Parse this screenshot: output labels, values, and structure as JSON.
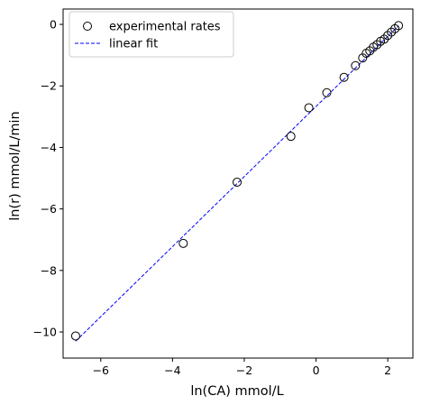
{
  "chart_data": {
    "type": "scatter",
    "xlabel": "ln(CA) mmol/L",
    "ylabel": "ln(r) mmol/L/min",
    "xlim": [
      -7.05,
      2.7
    ],
    "ylim": [
      -10.85,
      0.5
    ],
    "xticks": [
      -6,
      -4,
      -2,
      0,
      2
    ],
    "yticks": [
      0,
      -2,
      -4,
      -6,
      -8,
      -10
    ],
    "xtick_labels": [
      "−6",
      "−4",
      "−2",
      "0",
      "2"
    ],
    "ytick_labels": [
      "0",
      "−2",
      "−4",
      "−6",
      "−8",
      "−10"
    ],
    "grid": false,
    "legend_position": "upper-left",
    "series": [
      {
        "name": "experimental rates",
        "kind": "scatter",
        "marker": "open-circle",
        "color": "#000000",
        "x": [
          -6.7,
          -3.7,
          -2.2,
          -0.7,
          -0.2,
          0.3,
          0.78,
          1.1,
          1.3,
          1.4,
          1.5,
          1.6,
          1.7,
          1.8,
          1.9,
          2.0,
          2.1,
          2.2,
          2.3
        ],
        "y": [
          -10.13,
          -7.12,
          -5.13,
          -3.64,
          -2.71,
          -2.22,
          -1.72,
          -1.34,
          -1.09,
          -0.94,
          -0.86,
          -0.74,
          -0.66,
          -0.55,
          -0.48,
          -0.36,
          -0.25,
          -0.14,
          -0.04
        ]
      },
      {
        "name": "linear fit",
        "kind": "line",
        "style": "dashed",
        "color": "#0000ff",
        "x": [
          -6.7,
          2.3
        ],
        "y": [
          -10.3,
          -0.05
        ]
      }
    ]
  }
}
